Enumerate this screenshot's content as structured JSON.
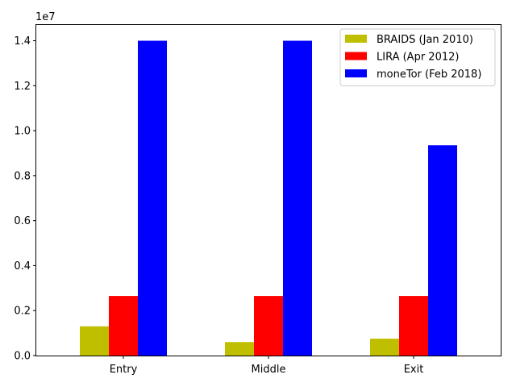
{
  "chart_data": {
    "type": "bar",
    "categories": [
      "Entry",
      "Middle",
      "Exit"
    ],
    "series": [
      {
        "name": "BRAIDS (Jan 2010)",
        "color": "#bfbf00",
        "values": [
          1300000,
          600000,
          750000
        ]
      },
      {
        "name": "LIRA (Apr 2012)",
        "color": "#ff0000",
        "values": [
          2650000,
          2650000,
          2650000
        ]
      },
      {
        "name": "moneTor (Feb 2018)",
        "color": "#0000ff",
        "values": [
          14000000,
          14000000,
          9350000
        ]
      }
    ],
    "title": "",
    "xlabel": "",
    "ylabel": "",
    "ylim": [
      0,
      14700000
    ],
    "y_scale_label": "1e7",
    "yticks": [
      0,
      2000000,
      4000000,
      6000000,
      8000000,
      10000000,
      12000000,
      14000000
    ],
    "ytick_labels": [
      "0.0",
      "0.2",
      "0.4",
      "0.6",
      "0.8",
      "1.0",
      "1.2",
      "1.4"
    ],
    "legend_position": "top-right",
    "grid": false
  }
}
